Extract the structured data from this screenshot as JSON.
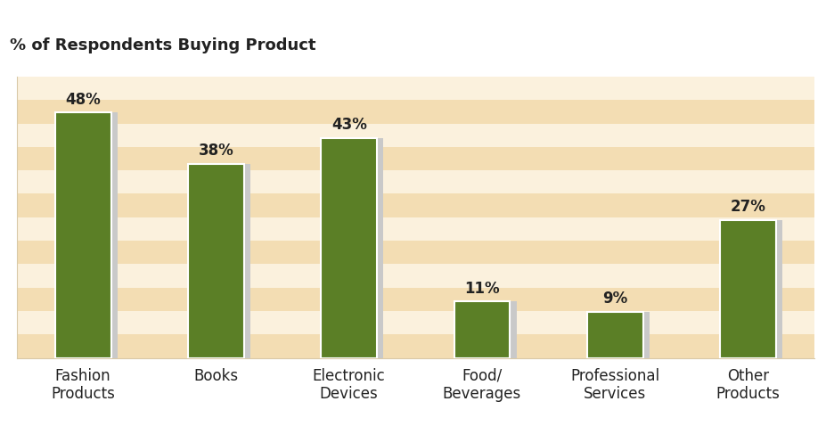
{
  "chart_data": {
    "type": "bar",
    "title": "% of Respondents Buying Product",
    "categories": [
      "Fashion\nProducts",
      "Books",
      "Electronic\nDevices",
      "Food/\nBeverages",
      "Professional\nServices",
      "Other\nProducts"
    ],
    "values": [
      48,
      38,
      43,
      11,
      9,
      27
    ],
    "value_labels": [
      "48%",
      "38%",
      "43%",
      "11%",
      "9%",
      "27%"
    ],
    "color": "#5b7f26",
    "ylim": [
      0,
      55
    ],
    "yticks": [],
    "grid": false,
    "data_labels": true,
    "tick_labels": "x"
  }
}
